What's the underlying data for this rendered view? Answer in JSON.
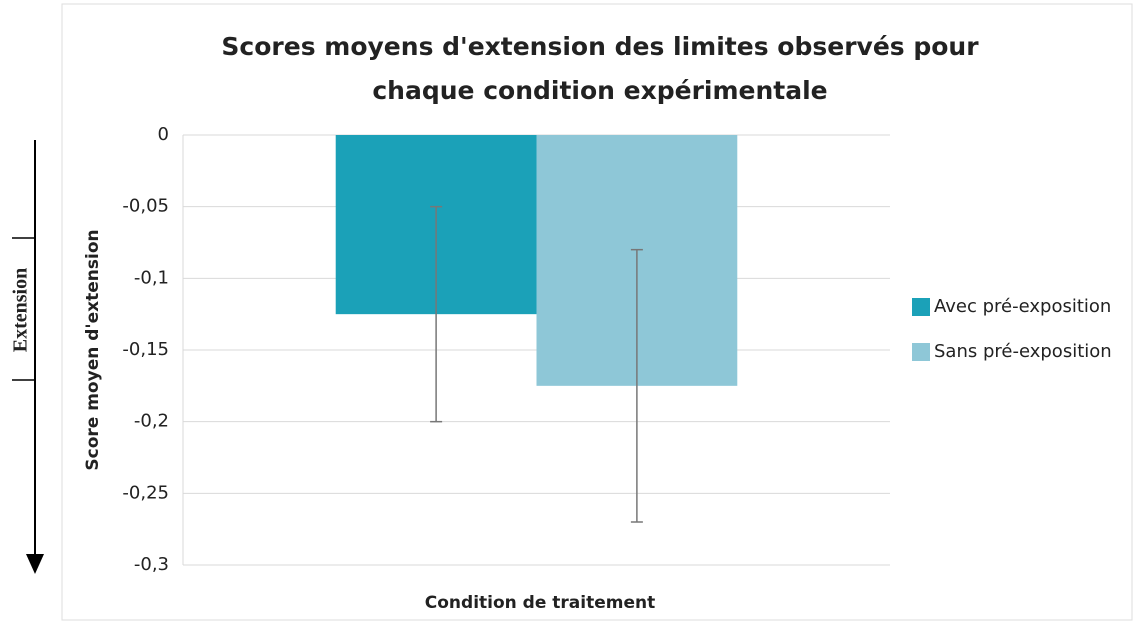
{
  "chart_data": {
    "type": "bar",
    "title": [
      "Scores moyens d'extension des limites observés pour",
      "chaque condition expérimentale"
    ],
    "ylabel": "Score moyen d'extension",
    "xlabel": "Condition de traitement",
    "annotation": "Extension",
    "categories": [
      null
    ],
    "series": [
      {
        "name": "Avec pré-exposition",
        "color": "#1ba1b8",
        "values": [
          -0.125
        ],
        "errors": [
          0.075
        ]
      },
      {
        "name": "Sans pré-exposition",
        "color": "#8ec7d7",
        "values": [
          -0.175
        ],
        "errors": [
          0.095
        ]
      }
    ],
    "ylim": [
      -0.3,
      0
    ],
    "yticks": [
      {
        "value": -0.3,
        "label": "-0,3"
      },
      {
        "value": -0.25,
        "label": "-0,25"
      },
      {
        "value": -0.2,
        "label": "-0,2"
      },
      {
        "value": -0.15,
        "label": "-0,15"
      },
      {
        "value": -0.1,
        "label": "-0,1"
      },
      {
        "value": -0.05,
        "label": "-0,05"
      },
      0
    ],
    "grid": true,
    "legend": "right"
  }
}
